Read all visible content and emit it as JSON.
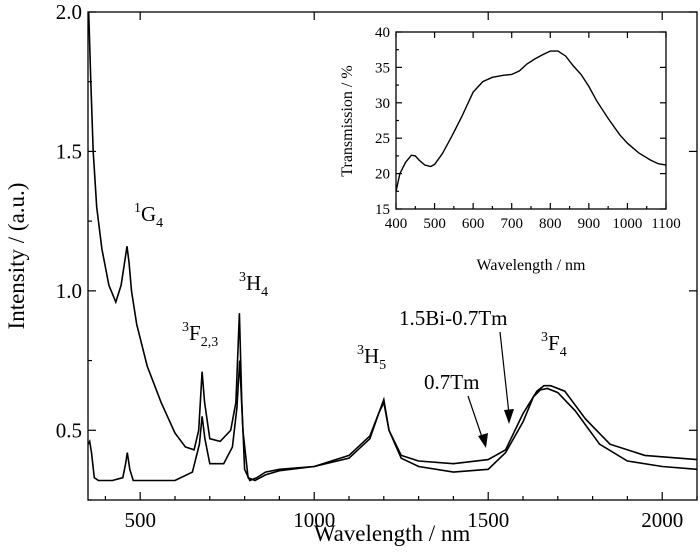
{
  "chart_data": [
    {
      "type": "line",
      "xlabel": "Wavelength / nm",
      "ylabel": "Intensity / (a.u.)",
      "xlim": [
        350,
        2100
      ],
      "ylim": [
        0.25,
        2.0
      ],
      "xticks": [
        500,
        1000,
        1500,
        2000
      ],
      "yticks": [
        0.5,
        1.0,
        1.5,
        2.0
      ],
      "ytick_labels": [
        "0.5",
        "1.0",
        "1.5",
        "2.0"
      ],
      "grid": false,
      "series": [
        {
          "name": "1.5Bi-0.7Tm",
          "x": [
            352,
            358,
            365,
            375,
            390,
            410,
            430,
            445,
            455,
            462,
            468,
            475,
            490,
            520,
            560,
            600,
            630,
            655,
            668,
            678,
            685,
            700,
            730,
            760,
            775,
            785,
            792,
            800,
            815,
            835,
            860,
            900,
            1000,
            1100,
            1160,
            1185,
            1200,
            1215,
            1250,
            1300,
            1400,
            1500,
            1550,
            1600,
            1640,
            1660,
            1680,
            1720,
            1780,
            1850,
            1950,
            2100
          ],
          "y": [
            2.0,
            1.75,
            1.5,
            1.3,
            1.15,
            1.02,
            0.96,
            1.02,
            1.1,
            1.16,
            1.1,
            1.0,
            0.88,
            0.73,
            0.6,
            0.49,
            0.44,
            0.43,
            0.5,
            0.71,
            0.6,
            0.47,
            0.46,
            0.5,
            0.6,
            0.92,
            0.6,
            0.36,
            0.32,
            0.33,
            0.35,
            0.36,
            0.37,
            0.41,
            0.48,
            0.56,
            0.6,
            0.5,
            0.41,
            0.39,
            0.38,
            0.395,
            0.43,
            0.56,
            0.64,
            0.66,
            0.66,
            0.64,
            0.54,
            0.45,
            0.41,
            0.395
          ]
        },
        {
          "name": "0.7Tm",
          "x": [
            350,
            355,
            360,
            368,
            380,
            420,
            450,
            458,
            463,
            470,
            480,
            520,
            600,
            650,
            670,
            678,
            686,
            700,
            740,
            765,
            778,
            786,
            795,
            810,
            830,
            860,
            900,
            1000,
            1100,
            1160,
            1185,
            1200,
            1215,
            1250,
            1300,
            1400,
            1500,
            1550,
            1600,
            1630,
            1650,
            1670,
            1700,
            1750,
            1820,
            1900,
            2000,
            2100
          ],
          "y": [
            0.45,
            0.46,
            0.42,
            0.33,
            0.32,
            0.32,
            0.33,
            0.38,
            0.42,
            0.36,
            0.32,
            0.32,
            0.32,
            0.35,
            0.45,
            0.55,
            0.47,
            0.38,
            0.38,
            0.44,
            0.58,
            0.75,
            0.5,
            0.33,
            0.32,
            0.34,
            0.355,
            0.37,
            0.4,
            0.47,
            0.56,
            0.61,
            0.5,
            0.4,
            0.37,
            0.35,
            0.36,
            0.42,
            0.53,
            0.62,
            0.645,
            0.65,
            0.635,
            0.57,
            0.45,
            0.39,
            0.37,
            0.36
          ]
        }
      ],
      "annotations": [
        {
          "base": "G",
          "sup": "1",
          "sub": "4"
        },
        {
          "base": "F",
          "sup": "3",
          "sub": "2,3"
        },
        {
          "base": "H",
          "sup": "3",
          "sub": "4"
        },
        {
          "base": "H",
          "sup": "3",
          "sub": "5"
        },
        {
          "base": "F",
          "sup": "3",
          "sub": "4"
        },
        {
          "text": "1.5Bi-0.7Tm"
        },
        {
          "text": "0.7Tm"
        }
      ]
    },
    {
      "type": "line",
      "inset": true,
      "xlabel": "Wavelength / nm",
      "ylabel": "Transmission / %",
      "xlim": [
        400,
        1100
      ],
      "ylim": [
        15,
        40
      ],
      "xticks": [
        400,
        500,
        600,
        700,
        800,
        900,
        1000,
        1100
      ],
      "yticks": [
        15,
        20,
        25,
        30,
        35,
        40
      ],
      "grid": false,
      "series": [
        {
          "x": [
            400,
            410,
            425,
            440,
            450,
            460,
            475,
            490,
            500,
            520,
            545,
            570,
            600,
            625,
            650,
            680,
            700,
            720,
            740,
            760,
            780,
            800,
            820,
            840,
            860,
            880,
            900,
            920,
            950,
            980,
            1000,
            1030,
            1060,
            1080,
            1100
          ],
          "y": [
            17.5,
            20.0,
            21.6,
            22.6,
            22.5,
            21.9,
            21.2,
            21.0,
            21.3,
            22.8,
            25.3,
            28.0,
            31.5,
            33.0,
            33.6,
            33.9,
            34.0,
            34.5,
            35.5,
            36.2,
            36.8,
            37.3,
            37.3,
            36.6,
            35.2,
            34.0,
            32.3,
            30.3,
            27.8,
            25.5,
            24.3,
            22.9,
            21.9,
            21.4,
            21.2
          ]
        }
      ]
    }
  ]
}
